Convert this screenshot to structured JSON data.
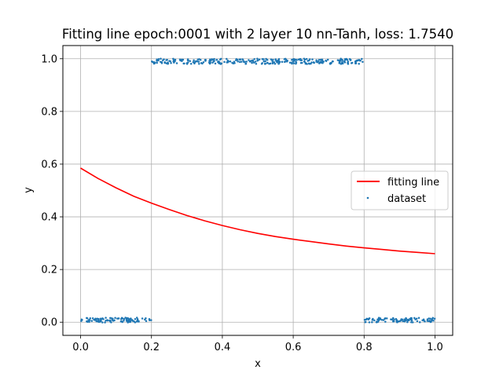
{
  "chart_data": {
    "type": "scatter",
    "title": "Fitting line epoch:0001 with 2 layer 10 nn-Tanh, loss: 1.7540",
    "xlabel": "x",
    "ylabel": "y",
    "xlim": [
      -0.05,
      1.05
    ],
    "ylim": [
      -0.05,
      1.05
    ],
    "xticks": [
      0.0,
      0.2,
      0.4,
      0.6,
      0.8,
      1.0
    ],
    "yticks": [
      0.0,
      0.2,
      0.4,
      0.6,
      0.8,
      1.0
    ],
    "xtick_labels": [
      "0.0",
      "0.2",
      "0.4",
      "0.6",
      "0.8",
      "1.0"
    ],
    "ytick_labels": [
      "0.0",
      "0.2",
      "0.4",
      "0.6",
      "0.8",
      "1.0"
    ],
    "grid": true,
    "legend_position": "center-right",
    "series": [
      {
        "name": "fitting line",
        "kind": "line",
        "color": "#ff0000",
        "x": [
          0.0,
          0.05,
          0.1,
          0.15,
          0.2,
          0.25,
          0.3,
          0.35,
          0.4,
          0.45,
          0.5,
          0.55,
          0.6,
          0.65,
          0.7,
          0.75,
          0.8,
          0.85,
          0.9,
          0.95,
          1.0
        ],
        "y": [
          0.585,
          0.545,
          0.51,
          0.478,
          0.452,
          0.428,
          0.405,
          0.385,
          0.367,
          0.351,
          0.337,
          0.325,
          0.315,
          0.306,
          0.297,
          0.289,
          0.282,
          0.276,
          0.27,
          0.265,
          0.26
        ]
      },
      {
        "name": "dataset",
        "kind": "scatter",
        "color": "#1f77b4",
        "segments": [
          {
            "x_range": [
              0.0,
              0.2
            ],
            "y_center": 0.008,
            "y_noise": 0.009
          },
          {
            "x_range": [
              0.2,
              0.8
            ],
            "y_center": 0.99,
            "y_noise": 0.01
          },
          {
            "x_range": [
              0.8,
              1.0
            ],
            "y_center": 0.008,
            "y_noise": 0.009
          }
        ]
      }
    ]
  }
}
